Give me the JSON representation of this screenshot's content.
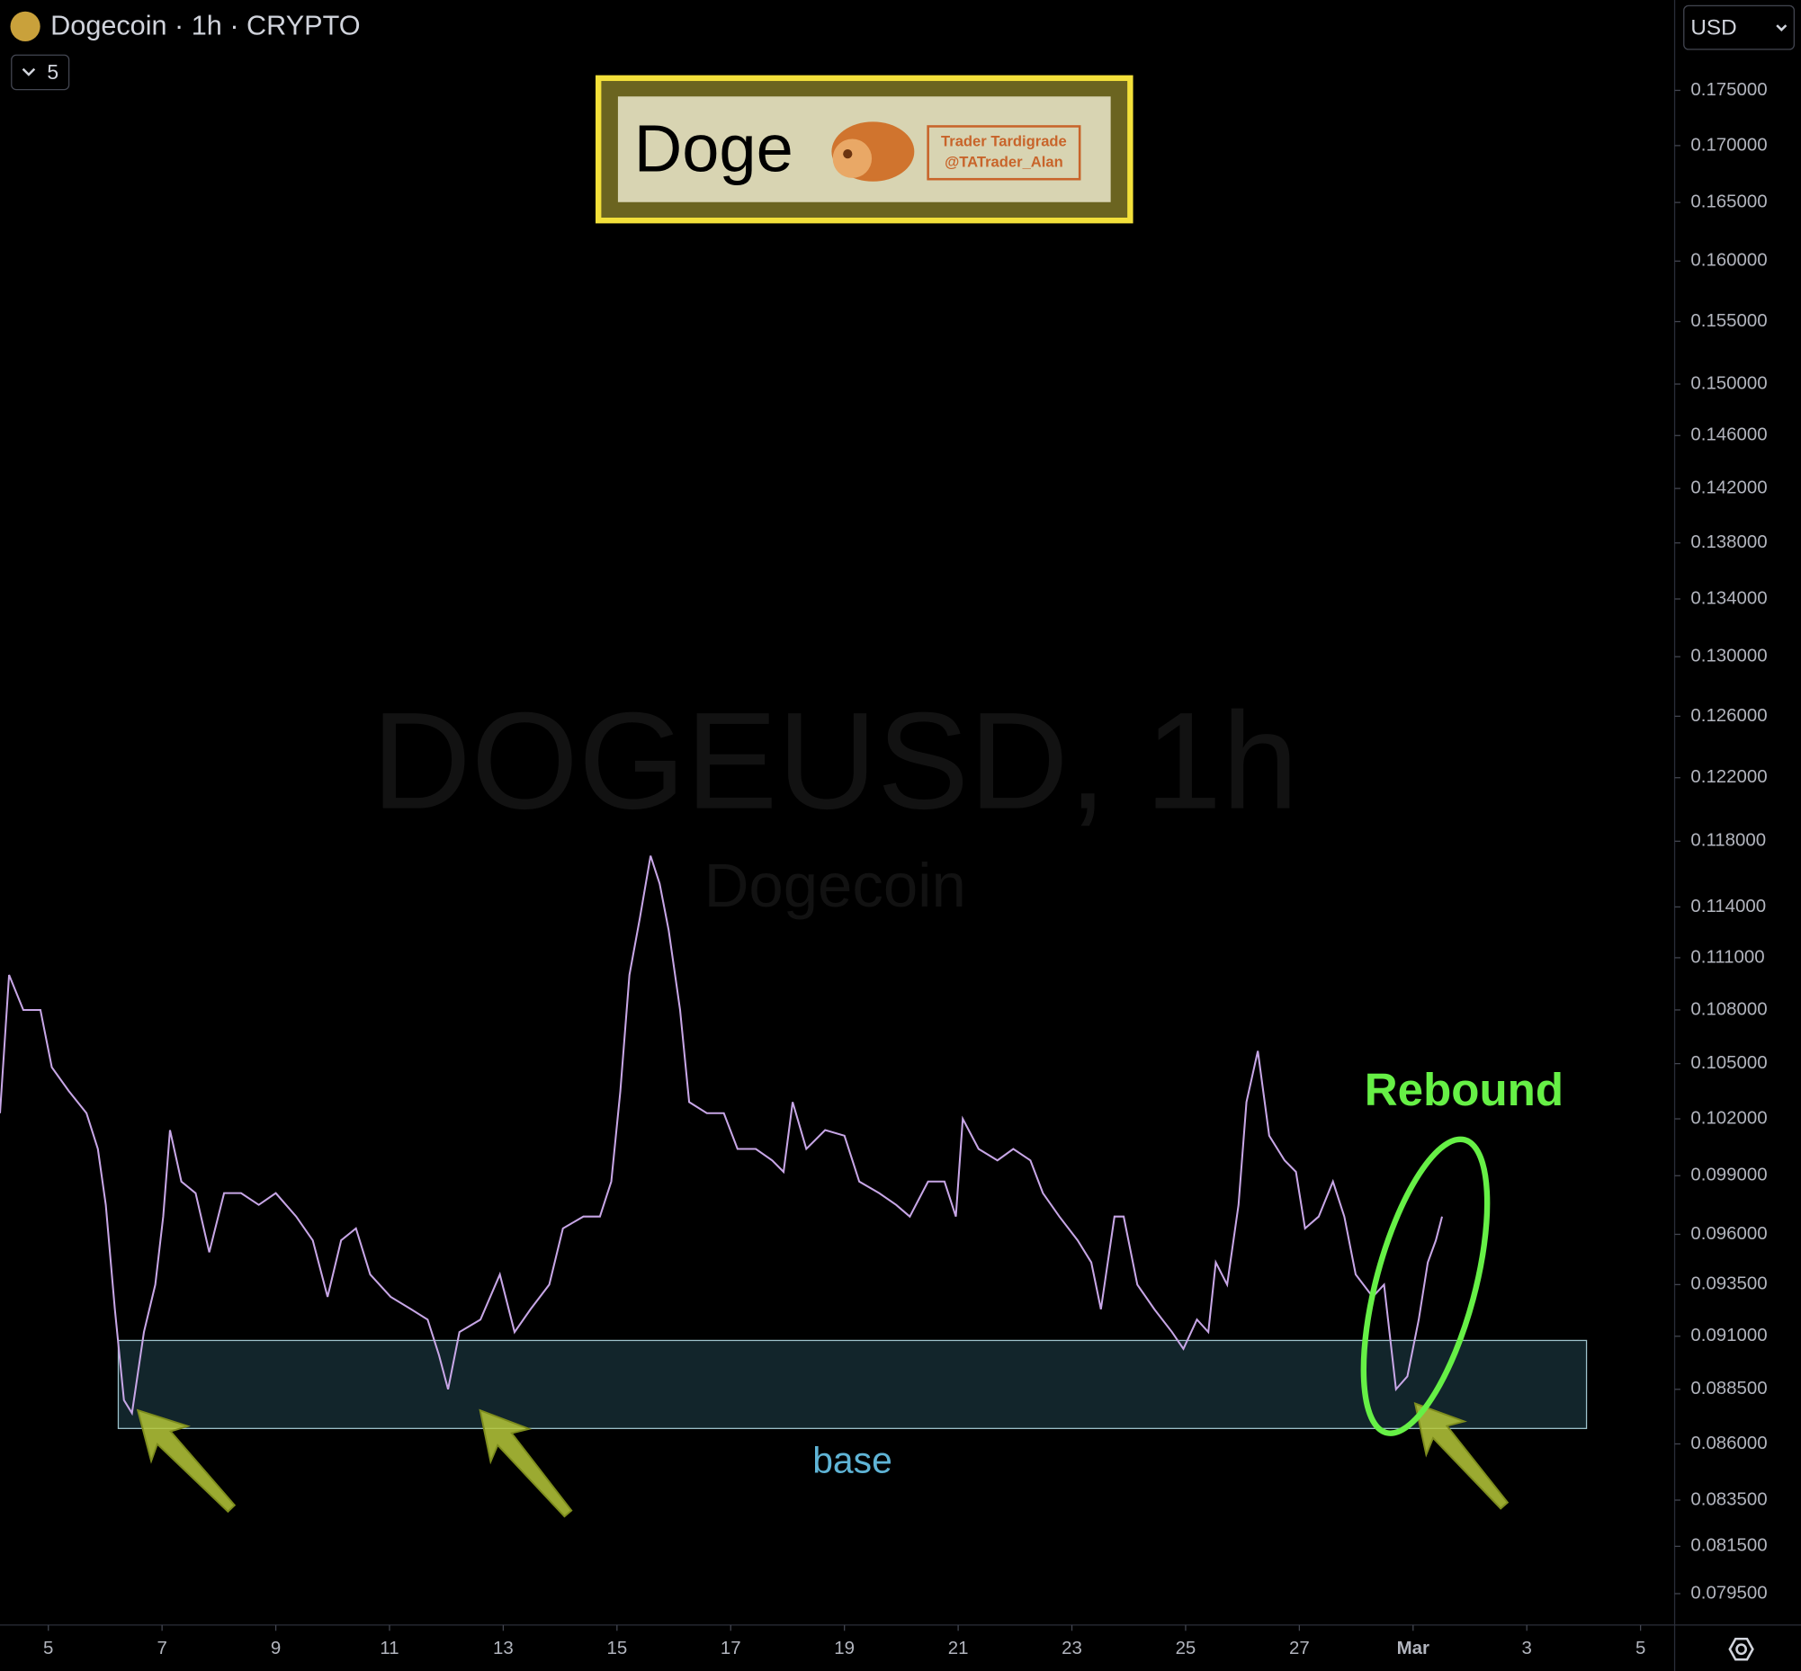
{
  "header": {
    "symbol": "Dogecoin · 1h · CRYPTO",
    "indicators": "5",
    "currency": "USD"
  },
  "watermark": {
    "symbol": "DOGEUSD, 1h",
    "name": "Dogecoin"
  },
  "logo": {
    "title": "Doge",
    "author": "Trader Tardigrade",
    "handle": "@TATrader_Alan"
  },
  "chart_data": {
    "type": "line",
    "color": "#c7a6e6",
    "log_scale": true,
    "x": [
      4.15,
      4.31,
      4.56,
      4.86,
      5.06,
      5.36,
      5.67,
      5.87,
      6.01,
      6.17,
      6.33,
      6.47,
      6.68,
      6.88,
      7.02,
      7.14,
      7.34,
      7.59,
      7.83,
      8.09,
      8.39,
      8.7,
      9.0,
      9.36,
      9.65,
      9.91,
      10.15,
      10.41,
      10.66,
      11.02,
      11.38,
      11.67,
      11.87,
      12.03,
      12.23,
      12.6,
      12.94,
      13.2,
      13.48,
      13.81,
      14.05,
      14.41,
      14.7,
      14.9,
      15.06,
      15.22,
      15.4,
      15.59,
      15.75,
      15.91,
      16.11,
      16.27,
      16.58,
      16.88,
      17.12,
      17.44,
      17.73,
      17.93,
      18.09,
      18.33,
      18.66,
      19.0,
      19.26,
      19.61,
      19.91,
      20.15,
      20.47,
      20.76,
      20.96,
      21.08,
      21.36,
      21.69,
      21.97,
      22.27,
      22.49,
      22.78,
      23.1,
      23.34,
      23.51,
      23.75,
      23.91,
      24.15,
      24.45,
      24.76,
      24.96,
      25.2,
      25.4,
      25.53,
      25.73,
      25.93,
      26.07,
      26.27,
      26.47,
      26.74,
      26.94,
      27.1,
      27.34,
      27.59,
      27.79,
      27.99,
      28.29,
      28.49,
      28.7,
      28.9,
      29.1,
      29.26,
      29.4,
      29.51
    ],
    "values": [
      0.1023,
      0.11,
      0.108,
      0.108,
      0.1048,
      0.1035,
      0.1023,
      0.1004,
      0.0975,
      0.0923,
      0.088,
      0.0874,
      0.0912,
      0.0935,
      0.0969,
      0.1014,
      0.0987,
      0.0981,
      0.0951,
      0.0981,
      0.0981,
      0.0975,
      0.0981,
      0.0969,
      0.0957,
      0.0929,
      0.0957,
      0.0963,
      0.094,
      0.0929,
      0.0923,
      0.0918,
      0.0901,
      0.0885,
      0.0912,
      0.0918,
      0.094,
      0.0912,
      0.0923,
      0.0935,
      0.0963,
      0.0969,
      0.0969,
      0.0987,
      0.1035,
      0.11,
      0.1133,
      0.1171,
      0.1154,
      0.1126,
      0.108,
      0.1029,
      0.1023,
      0.1023,
      0.1004,
      0.1004,
      0.0998,
      0.0992,
      0.1029,
      0.1004,
      0.1014,
      0.1011,
      0.0987,
      0.0981,
      0.0975,
      0.0969,
      0.0987,
      0.0987,
      0.0969,
      0.102,
      0.1004,
      0.0998,
      0.1004,
      0.0998,
      0.0981,
      0.0969,
      0.0957,
      0.0946,
      0.0923,
      0.0969,
      0.0969,
      0.0935,
      0.0923,
      0.0912,
      0.0904,
      0.0918,
      0.0912,
      0.0946,
      0.0935,
      0.0975,
      0.1029,
      0.1057,
      0.1011,
      0.0998,
      0.0992,
      0.0963,
      0.0969,
      0.0987,
      0.0969,
      0.094,
      0.0929,
      0.0935,
      0.0885,
      0.0891,
      0.0918,
      0.0946,
      0.0957,
      0.0969
    ],
    "xlim": [
      4.15,
      33.6
    ],
    "xticks": [
      5,
      7,
      9,
      11,
      13,
      15,
      17,
      19,
      21,
      23,
      25,
      27,
      {
        "value": 29,
        "label": "Mar"
      },
      {
        "value": 31,
        "label": "3"
      },
      {
        "value": 33,
        "label": "5"
      }
    ],
    "ylim": [
      0.0782,
      0.1835
    ],
    "yticks": [
      {
        "value": 0.0795,
        "label": "0.079500"
      },
      {
        "value": 0.0815,
        "label": "0.081500"
      },
      {
        "value": 0.0835,
        "label": "0.083500"
      },
      {
        "value": 0.086,
        "label": "0.086000"
      },
      {
        "value": 0.0885,
        "label": "0.088500"
      },
      {
        "value": 0.091,
        "label": "0.091000"
      },
      {
        "value": 0.0935,
        "label": "0.093500"
      },
      {
        "value": 0.096,
        "label": "0.096000"
      },
      {
        "value": 0.099,
        "label": "0.099000"
      },
      {
        "value": 0.102,
        "label": "0.102000"
      },
      {
        "value": 0.105,
        "label": "0.105000"
      },
      {
        "value": 0.108,
        "label": "0.108000"
      },
      {
        "value": 0.111,
        "label": "0.111000"
      },
      {
        "value": 0.114,
        "label": "0.114000"
      },
      {
        "value": 0.118,
        "label": "0.118000"
      },
      {
        "value": 0.122,
        "label": "0.122000"
      },
      {
        "value": 0.126,
        "label": "0.126000"
      },
      {
        "value": 0.13,
        "label": "0.130000"
      },
      {
        "value": 0.134,
        "label": "0.134000"
      },
      {
        "value": 0.138,
        "label": "0.138000"
      },
      {
        "value": 0.142,
        "label": "0.142000"
      },
      {
        "value": 0.146,
        "label": "0.146000"
      },
      {
        "value": 0.15,
        "label": "0.150000"
      },
      {
        "value": 0.155,
        "label": "0.155000"
      },
      {
        "value": 0.16,
        "label": "0.160000"
      },
      {
        "value": 0.165,
        "label": "0.165000"
      },
      {
        "value": 0.17,
        "label": "0.170000"
      },
      {
        "value": 0.175,
        "label": "0.175000"
      }
    ],
    "zones": [
      {
        "label": "base",
        "x": [
          6.23,
          32.05
        ],
        "y": [
          0.0867,
          0.0908
        ]
      }
    ],
    "annotation": "Rebound"
  }
}
